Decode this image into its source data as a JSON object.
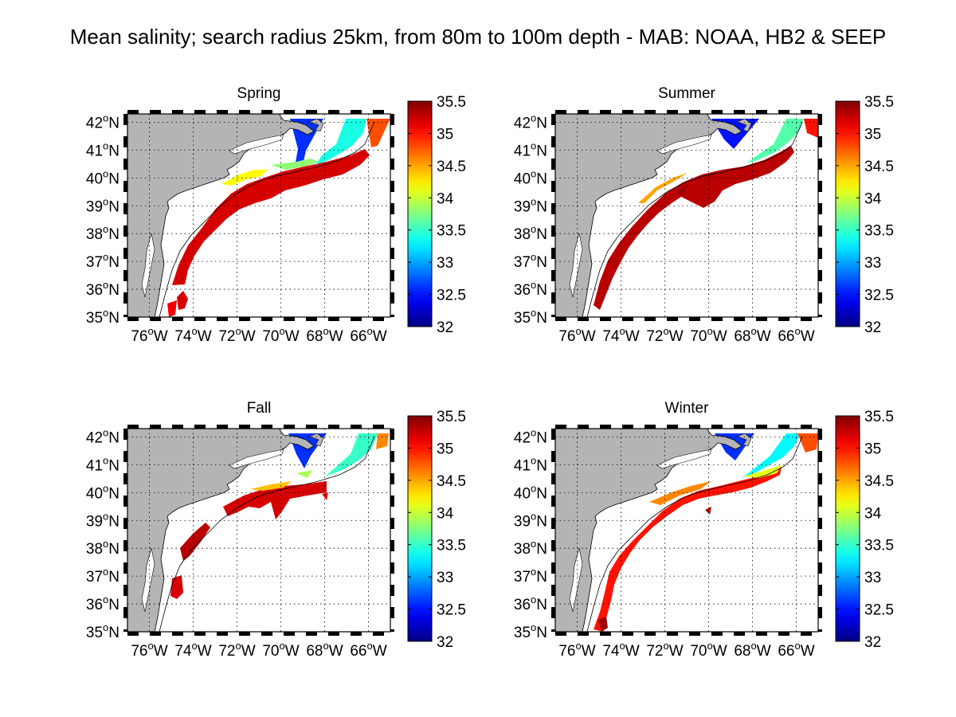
{
  "figure": {
    "title": "Mean salinity; search radius 25km, from 80m to 100m depth - MAB: NOAA, HB2 & SEEP"
  },
  "axes": {
    "lat_ticks": [
      "35",
      "36",
      "37",
      "38",
      "39",
      "40",
      "41",
      "42"
    ],
    "lat_suffix": "N",
    "lon_ticks": [
      "76",
      "74",
      "72",
      "70",
      "68",
      "66"
    ],
    "lon_suffix": "W",
    "degree_symbol": "o"
  },
  "colorbar": {
    "ticks": [
      "35.5",
      "35",
      "34.5",
      "34",
      "33.5",
      "33",
      "32.5",
      "32"
    ],
    "range": [
      32,
      35.5
    ],
    "colormap": "jet"
  },
  "colors": {
    "land": "#b4b4b4",
    "water": "#ffffff",
    "grid": "#000000",
    "frame": "#000000",
    "high_salinity": "#8b0000",
    "low_salinity": "#1f5fd6"
  },
  "panels": [
    {
      "id": "spring",
      "title": "Spring"
    },
    {
      "id": "summer",
      "title": "Summer"
    },
    {
      "id": "fall",
      "title": "Fall"
    },
    {
      "id": "winter",
      "title": "Winter"
    }
  ],
  "map_data": {
    "region": "Mid-Atlantic Bight",
    "lon_range_W": [
      77,
      65
    ],
    "lat_range_N": [
      35,
      42.3
    ],
    "variable": "mean salinity",
    "depth_range_m": [
      80,
      100
    ],
    "search_radius_km": 25
  }
}
